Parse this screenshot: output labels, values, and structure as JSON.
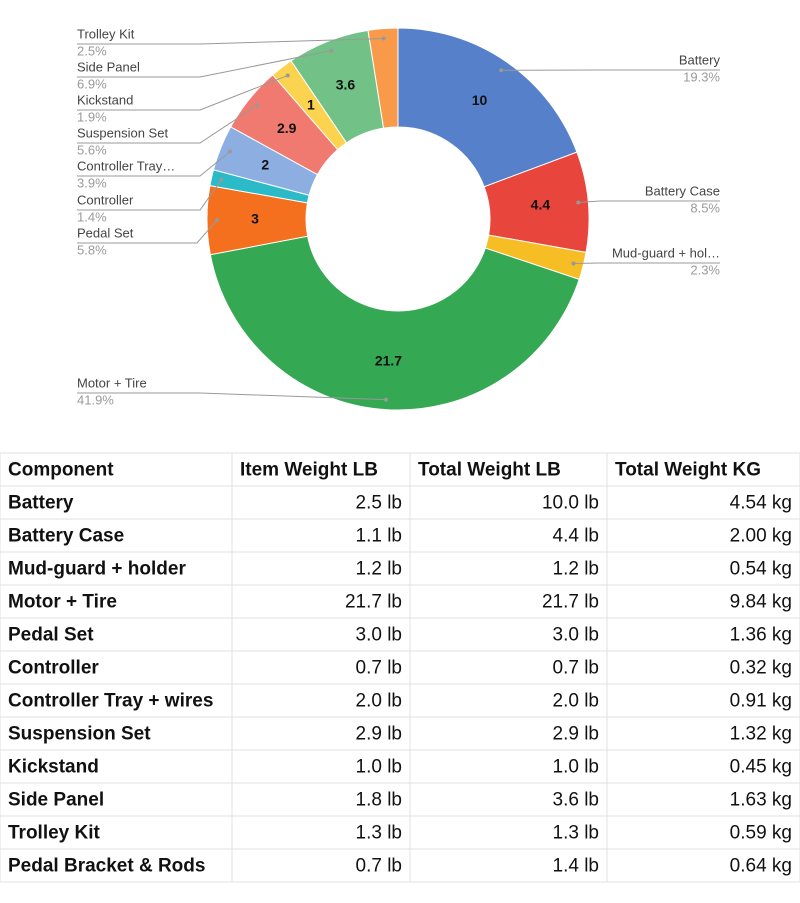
{
  "chart_data": {
    "type": "donut",
    "categories": [
      "Battery",
      "Battery Case",
      "Mud-guard + hol…",
      "Motor + Tire",
      "Pedal Set",
      "Controller",
      "Controller Tray…",
      "Suspension Set",
      "Kickstand",
      "Side Panel",
      "Trolley Kit"
    ],
    "values": [
      10,
      4.4,
      1.2,
      21.7,
      3,
      0.7,
      2,
      2.9,
      1,
      3.6,
      1.3
    ],
    "value_labels": [
      "10",
      "4.4",
      null,
      "21.7",
      "3",
      null,
      "2",
      "2.9",
      "1",
      "3.6",
      null
    ],
    "percent_labels": [
      "19.3%",
      "8.5%",
      "2.3%",
      "41.9%",
      "5.8%",
      "1.4%",
      "3.9%",
      "5.6%",
      "1.9%",
      "6.9%",
      "2.5%"
    ],
    "colors": [
      "#5680c9",
      "#e8453c",
      "#f6bd25",
      "#34a853",
      "#f4701f",
      "#2bbac7",
      "#8caee0",
      "#f07a70",
      "#fcd34f",
      "#72c288",
      "#f99a4b"
    ]
  },
  "table": {
    "header": [
      "Component",
      "Item Weight LB",
      "Total Weight LB",
      "Total Weight KG"
    ],
    "rows": [
      [
        "Battery",
        "2.5 lb",
        "10.0 lb",
        "4.54 kg"
      ],
      [
        "Battery Case",
        "1.1 lb",
        "4.4 lb",
        "2.00 kg"
      ],
      [
        "Mud-guard + holder",
        "1.2 lb",
        "1.2 lb",
        "0.54 kg"
      ],
      [
        "Motor + Tire",
        "21.7 lb",
        "21.7 lb",
        "9.84 kg"
      ],
      [
        "Pedal Set",
        "3.0 lb",
        "3.0 lb",
        "1.36 kg"
      ],
      [
        "Controller",
        "0.7 lb",
        "0.7 lb",
        "0.32 kg"
      ],
      [
        "Controller Tray + wires",
        "2.0 lb",
        "2.0 lb",
        "0.91 kg"
      ],
      [
        "Suspension Set",
        "2.9 lb",
        "2.9 lb",
        "1.32 kg"
      ],
      [
        "Kickstand",
        "1.0 lb",
        "1.0 lb",
        "0.45 kg"
      ],
      [
        "Side Panel",
        "1.8 lb",
        "3.6 lb",
        "1.63 kg"
      ],
      [
        "Trolley Kit",
        "1.3 lb",
        "1.3 lb",
        "0.59 kg"
      ],
      [
        "Pedal Bracket & Rods",
        "0.7 lb",
        "1.4 lb",
        "0.64 kg"
      ]
    ]
  }
}
